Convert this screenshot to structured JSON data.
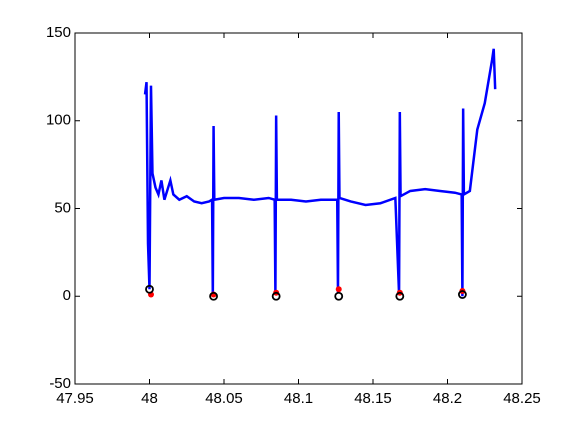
{
  "chart_data": {
    "type": "line",
    "xlim": [
      47.95,
      48.25
    ],
    "xticks": [
      47.95,
      48,
      48.05,
      48.1,
      48.15,
      48.2,
      48.25
    ],
    "ylim": [
      -50,
      150
    ],
    "yticks": [
      -50,
      0,
      50,
      100,
      150
    ],
    "grid": false,
    "series": [
      {
        "type": "line",
        "color": "#0000ff",
        "x": [
          47.997,
          47.998,
          47.999,
          48.0,
          48.001,
          48.002,
          48.004,
          48.006,
          48.008,
          48.01,
          48.014,
          48.016,
          48.02,
          48.025,
          48.03,
          48.035,
          48.04,
          48.042,
          48.0425,
          48.043,
          48.0435,
          48.05,
          48.06,
          48.07,
          48.08,
          48.084,
          48.0845,
          48.085,
          48.0855,
          48.095,
          48.105,
          48.115,
          48.126,
          48.1265,
          48.127,
          48.1275,
          48.135,
          48.145,
          48.155,
          48.165,
          48.1675,
          48.168,
          48.1685,
          48.175,
          48.185,
          48.195,
          48.205,
          48.2095,
          48.21,
          48.2105,
          48.211,
          48.215,
          48.22,
          48.225,
          48.23,
          48.231,
          48.232
        ],
        "values": [
          115,
          122,
          30,
          4,
          120,
          70,
          62,
          58,
          66,
          55,
          66,
          58,
          55,
          57,
          54,
          53,
          54,
          55,
          0,
          97,
          55,
          56,
          56,
          55,
          56,
          55,
          1,
          103,
          55,
          55,
          54,
          55,
          55,
          2,
          105,
          56,
          54,
          52,
          53,
          56,
          1,
          105,
          57,
          60,
          61,
          60,
          59,
          58,
          0,
          107,
          58,
          60,
          95,
          110,
          135,
          141,
          118
        ]
      },
      {
        "type": "scatter",
        "color": "#ff0000",
        "marker": "dot",
        "x": [
          48.001,
          48.043,
          48.085,
          48.127,
          48.168,
          48.21
        ],
        "values": [
          1,
          1,
          2,
          4,
          2,
          3
        ]
      },
      {
        "type": "scatter",
        "color": "#000000",
        "marker": "circle",
        "x": [
          48.0,
          48.043,
          48.085,
          48.127,
          48.168,
          48.21
        ],
        "values": [
          4,
          0,
          0,
          0,
          0,
          1
        ]
      }
    ]
  }
}
